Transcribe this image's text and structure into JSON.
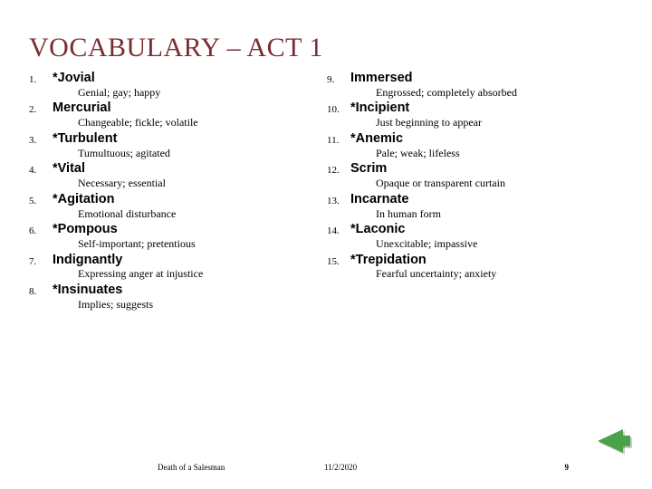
{
  "title": "VOCABULARY – ACT 1",
  "title_color": "#7b2d32",
  "left": [
    {
      "n": "1.",
      "w": "*Jovial",
      "d": "Genial; gay; happy"
    },
    {
      "n": "2.",
      "w": "Mercurial",
      "d": "Changeable; fickle; volatile"
    },
    {
      "n": "3.",
      "w": "*Turbulent",
      "d": "Tumultuous; agitated"
    },
    {
      "n": "4.",
      "w": "*Vital",
      "d": "Necessary; essential"
    },
    {
      "n": "5.",
      "w": "*Agitation",
      "d": "Emotional disturbance"
    },
    {
      "n": "6.",
      "w": "*Pompous",
      "d": "Self-important; pretentious"
    },
    {
      "n": "7.",
      "w": "Indignantly",
      "d": "Expressing anger at injustice"
    },
    {
      "n": "8.",
      "w": "*Insinuates",
      "d": "Implies; suggests"
    }
  ],
  "right": [
    {
      "n": "9.",
      "w": "Immersed",
      "d": "Engrossed; completely absorbed"
    },
    {
      "n": "10.",
      "w": "*Incipient",
      "d": "Just beginning to appear"
    },
    {
      "n": "11.",
      "w": "*Anemic",
      "d": "Pale; weak; lifeless"
    },
    {
      "n": "12.",
      "w": "Scrim",
      "d": "Opaque or transparent curtain"
    },
    {
      "n": "13.",
      "w": "Incarnate",
      "d": "In human form"
    },
    {
      "n": "14.",
      "w": "*Laconic",
      "d": "Unexcitable; impassive"
    },
    {
      "n": "15.",
      "w": "*Trepidation",
      "d": "Fearful uncertainty; anxiety"
    }
  ],
  "footer": {
    "source": "Death of a Salesman",
    "date": "11/2/2020",
    "page": "9"
  },
  "back_color": "#4aa24a"
}
